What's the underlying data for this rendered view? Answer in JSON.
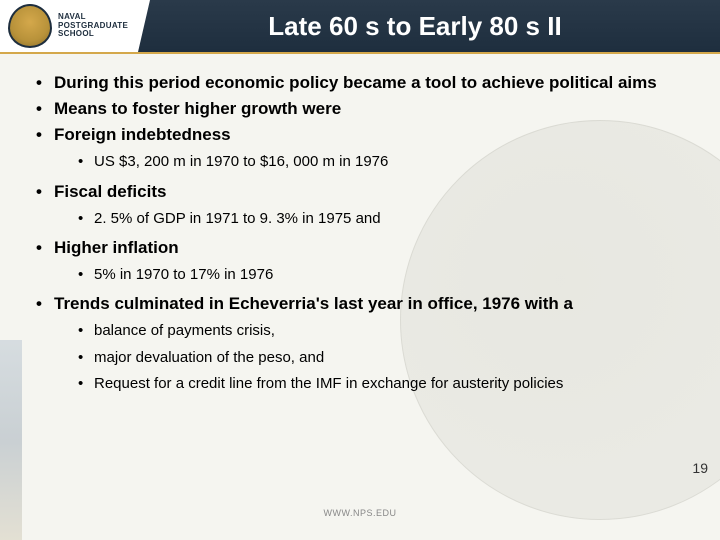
{
  "header": {
    "logo_line1": "NAVAL",
    "logo_line2": "POSTGRADUATE",
    "logo_line3": "SCHOOL",
    "title": "Late 60 s to Early 80 s II"
  },
  "bullets": [
    {
      "text": "During this period economic policy became a tool to achieve political aims"
    },
    {
      "text": "Means to foster higher growth were"
    },
    {
      "text": "Foreign indebtedness",
      "sub": [
        "US $3, 200 m in 1970 to $16, 000 m in 1976"
      ]
    },
    {
      "text": "Fiscal deficits",
      "sub": [
        "2. 5% of GDP in 1971 to 9. 3% in 1975 and"
      ]
    },
    {
      "text": "Higher inflation",
      "sub": [
        "5% in 1970 to 17% in 1976"
      ]
    },
    {
      "text": "Trends culminated in Echeverria's last year in office, 1976 with a",
      "sub": [
        "balance of payments crisis,",
        "major devaluation of the peso, and",
        "Request for a credit line from the IMF in exchange for austerity policies"
      ]
    }
  ],
  "footer": "WWW.NPS.EDU",
  "page_number": "19"
}
